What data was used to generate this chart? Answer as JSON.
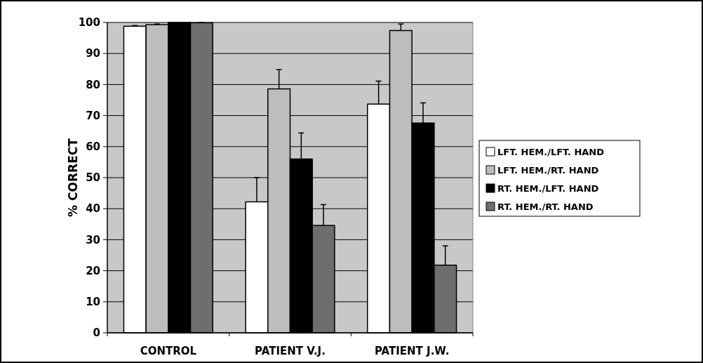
{
  "chart_data": {
    "type": "bar",
    "ylabel": "% CORRECT",
    "categories": [
      "CONTROL",
      "PATIENT V.J.",
      "PATIENT J.W."
    ],
    "series": [
      {
        "name": "LFT. HEM./LFT. HAND",
        "color": "#ffffff",
        "values": [
          98.8,
          42.2,
          73.7
        ],
        "errors": [
          0.2,
          7.8,
          7.4
        ]
      },
      {
        "name": "LFT. HEM./RT. HAND",
        "color": "#bdbdbd",
        "values": [
          99.3,
          78.6,
          97.4
        ],
        "errors": [
          0.2,
          6.2,
          2.1
        ]
      },
      {
        "name": "RT. HEM./LFT. HAND",
        "color": "#000000",
        "values": [
          100,
          56.0,
          67.6
        ],
        "errors": [
          null,
          8.4,
          6.5
        ]
      },
      {
        "name": "RT. HEM./RT. HAND",
        "color": "#6e6e6e",
        "values": [
          99.9,
          34.6,
          21.8
        ],
        "errors": [
          0.1,
          6.7,
          6.2
        ]
      }
    ],
    "ylim": [
      0,
      100
    ],
    "yticks": [
      0,
      10,
      20,
      30,
      40,
      50,
      60,
      70,
      80,
      90,
      100
    ],
    "grid": "y",
    "legend": "right"
  }
}
